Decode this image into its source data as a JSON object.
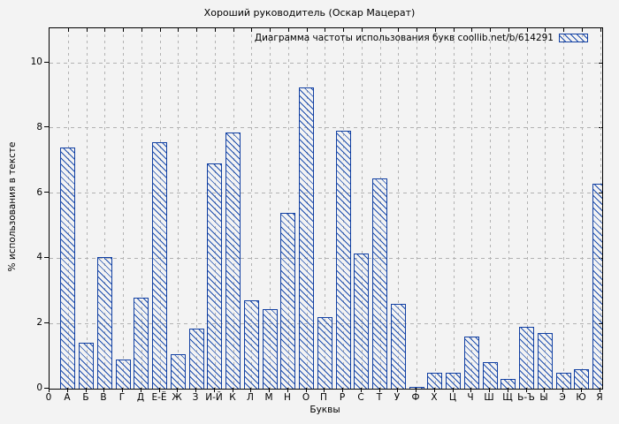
{
  "page": {
    "background_color": "#f3f3f3",
    "accent_color": "#1240a2",
    "gridline_color": "#b2b2b2"
  },
  "legend": {
    "swatch_icon": "hatched-bar-swatch-icon"
  },
  "chart_data": {
    "type": "bar",
    "title": "Хороший руководитель (Оскар Мацерат)",
    "legend": "Диаграмма частоты использования букв coollib.net/b/614291",
    "legend_position": "top-right-inside",
    "xlabel": "Буквы",
    "ylabel": "% использования в тексте",
    "x_origin_label": "0",
    "categories": [
      "А",
      "Б",
      "В",
      "Г",
      "Д",
      "Е-Ё",
      "Ж",
      "З",
      "И-Й",
      "К",
      "Л",
      "М",
      "Н",
      "О",
      "П",
      "Р",
      "С",
      "Т",
      "У",
      "Ф",
      "Х",
      "Ц",
      "Ч",
      "Ш",
      "Щ",
      "Ь-Ъ",
      "Ы",
      "Э",
      "Ю",
      "Я"
    ],
    "values": [
      7.4,
      1.4,
      4.05,
      0.9,
      2.8,
      7.55,
      1.05,
      1.85,
      6.9,
      7.85,
      2.7,
      2.45,
      5.4,
      9.25,
      2.2,
      7.9,
      4.15,
      6.45,
      2.6,
      0.05,
      0.5,
      0.5,
      1.6,
      0.8,
      0.3,
      1.9,
      1.7,
      0.5,
      0.6,
      6.3
    ],
    "yticks": [
      0,
      2,
      4,
      6,
      8,
      10
    ],
    "ylim": [
      0,
      11.05
    ],
    "grid": true,
    "bar_fill": "diagonal-hatch",
    "bar_color": "#1240a2"
  }
}
